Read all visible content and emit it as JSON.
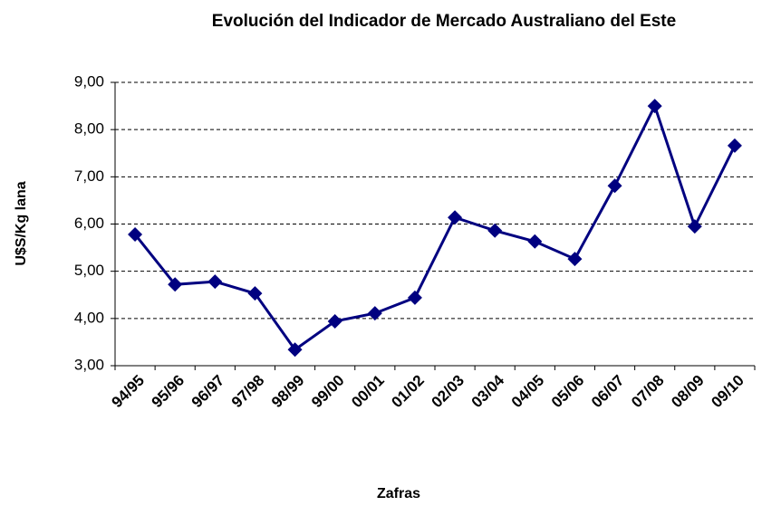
{
  "chart_data": {
    "type": "line",
    "title": "Evolución del Indicador de Mercado Australiano del Este",
    "x_label": "Zafras",
    "y_label": "U$S/Kg lana",
    "categories": [
      "94/95",
      "95/96",
      "96/97",
      "97/98",
      "98/99",
      "99/00",
      "00/01",
      "01/02",
      "02/03",
      "03/04",
      "04/05",
      "05/06",
      "06/07",
      "07/08",
      "08/09",
      "09/10"
    ],
    "series": [
      {
        "name": "Indicador",
        "color": "#000080",
        "values": [
          5.78,
          4.72,
          4.78,
          4.53,
          3.34,
          3.94,
          4.11,
          4.44,
          6.14,
          5.86,
          5.63,
          5.26,
          6.81,
          8.5,
          5.95,
          7.66
        ]
      }
    ],
    "ylim": [
      3,
      9
    ],
    "yticks": [
      {
        "value": 3,
        "label": "3,00"
      },
      {
        "value": 4,
        "label": "4,00"
      },
      {
        "value": 5,
        "label": "5,00"
      },
      {
        "value": 6,
        "label": "6,00"
      },
      {
        "value": 7,
        "label": "7,00"
      },
      {
        "value": 8,
        "label": "8,00"
      },
      {
        "value": 9,
        "label": "9,00"
      }
    ],
    "grid": true
  }
}
